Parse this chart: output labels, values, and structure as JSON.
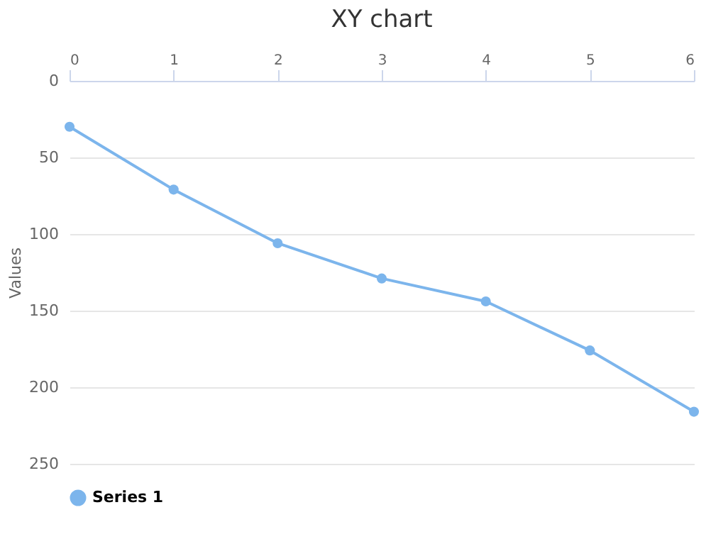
{
  "chart_data": {
    "type": "line",
    "title": "XY chart",
    "ylabel": "Values",
    "x": [
      0,
      1,
      2,
      3,
      4,
      5,
      6
    ],
    "series": [
      {
        "name": "Series 1",
        "color": "#7cb5ec",
        "values": [
          30,
          71,
          106,
          129,
          144,
          176,
          216
        ]
      }
    ],
    "xlim": [
      0,
      6
    ],
    "xticks": [
      0,
      1,
      2,
      3,
      4,
      5,
      6
    ],
    "ylim": [
      250,
      0
    ],
    "yticks": [
      0,
      50,
      100,
      150,
      200,
      250
    ],
    "grid": "y",
    "legend": "bottom",
    "marker": "circle",
    "line_style": "solid"
  }
}
